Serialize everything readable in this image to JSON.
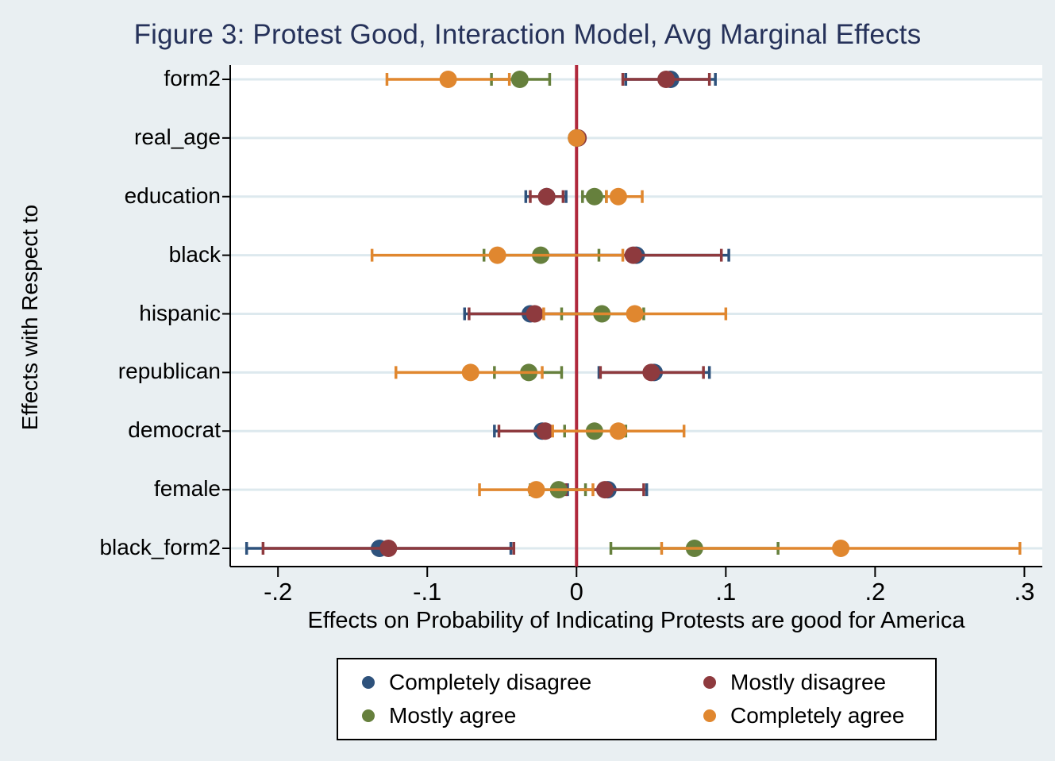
{
  "chart_data": {
    "type": "scatter",
    "subtype": "coefficient-plot-with-ci",
    "title": "Figure 3: Protest Good, Interaction Model, Avg Marginal Effects",
    "xlabel": "Effects on Probability of Indicating Protests are good for America",
    "ylabel": "Effects with Respect to",
    "categories": [
      "form2",
      "real_age",
      "education",
      "black",
      "hispanic",
      "republican",
      "democrat",
      "female",
      "black_form2"
    ],
    "x_ticks": [
      {
        "value": -0.2,
        "label": "-.2"
      },
      {
        "value": -0.1,
        "label": "-.1"
      },
      {
        "value": 0,
        "label": "0"
      },
      {
        "value": 0.1,
        "label": ".1"
      },
      {
        "value": 0.2,
        "label": ".2"
      },
      {
        "value": 0.3,
        "label": ".3"
      }
    ],
    "xlim": [
      -0.232,
      0.312
    ],
    "grid": "horizontal-only",
    "legend_position": "bottom",
    "zero_line": {
      "value": 0,
      "color": "#b0293c"
    },
    "series": [
      {
        "name": "Completely disagree",
        "color": "#2e527c",
        "values": [
          [
            0.063,
            0.033,
            0.093
          ],
          [
            0.0,
            -0.001,
            0.001
          ],
          [
            -0.02,
            -0.034,
            -0.007
          ],
          [
            0.04,
            -0.022,
            0.102
          ],
          [
            -0.031,
            -0.075,
            0.014
          ],
          [
            0.052,
            0.015,
            0.089
          ],
          [
            -0.023,
            -0.055,
            0.01
          ],
          [
            0.021,
            -0.006,
            0.047
          ],
          [
            -0.132,
            -0.221,
            -0.044
          ]
        ]
      },
      {
        "name": "Mostly disagree",
        "color": "#8e3a3e",
        "values": [
          [
            0.06,
            0.031,
            0.089
          ],
          [
            0.001,
            0.0,
            0.002
          ],
          [
            -0.02,
            -0.031,
            -0.009
          ],
          [
            0.038,
            -0.021,
            0.097
          ],
          [
            -0.028,
            -0.072,
            0.017
          ],
          [
            0.05,
            0.016,
            0.085
          ],
          [
            -0.021,
            -0.052,
            0.01
          ],
          [
            0.019,
            -0.007,
            0.045
          ],
          [
            -0.126,
            -0.21,
            -0.042
          ]
        ]
      },
      {
        "name": "Mostly agree",
        "color": "#66803d",
        "values": [
          [
            -0.038,
            -0.057,
            -0.018
          ],
          [
            0.0,
            -0.001,
            0.001
          ],
          [
            0.012,
            0.004,
            0.02
          ],
          [
            -0.024,
            -0.062,
            0.015
          ],
          [
            0.017,
            -0.01,
            0.045
          ],
          [
            -0.032,
            -0.055,
            -0.01
          ],
          [
            0.012,
            -0.008,
            0.033
          ],
          [
            -0.012,
            -0.031,
            0.006
          ],
          [
            0.079,
            0.023,
            0.135
          ]
        ]
      },
      {
        "name": "Completely agree",
        "color": "#e0872f",
        "values": [
          [
            -0.086,
            -0.127,
            -0.045
          ],
          [
            0.0,
            -0.001,
            0.001
          ],
          [
            0.028,
            0.02,
            0.044
          ],
          [
            -0.053,
            -0.137,
            0.031
          ],
          [
            0.039,
            -0.022,
            0.1
          ],
          [
            -0.071,
            -0.121,
            -0.023
          ],
          [
            0.028,
            -0.016,
            0.072
          ],
          [
            -0.027,
            -0.065,
            0.011
          ],
          [
            0.177,
            0.057,
            0.297
          ]
        ]
      }
    ],
    "colors": {
      "background": "#e9eff2",
      "plot_background": "#ffffff",
      "gridline": "#dde9ee",
      "axis": "#000000",
      "title": "#26325a",
      "zero_line": "#b0293c"
    }
  }
}
